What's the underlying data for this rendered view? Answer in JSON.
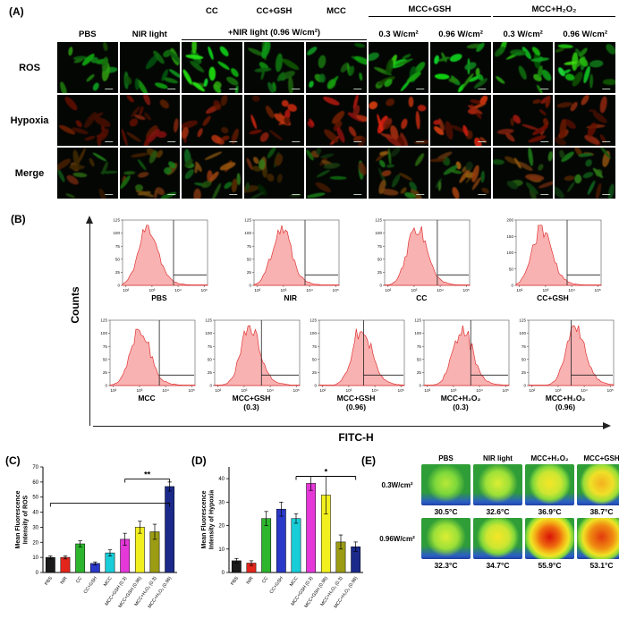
{
  "figure": {
    "panelA_label": "(A)",
    "panelB_label": "(B)",
    "panelC_label": "(C)",
    "panelD_label": "(D)",
    "panelE_label": "(E)"
  },
  "colors": {
    "ros_green": "#35d435",
    "hypoxia_red": "#e2301c",
    "merge_orange": "#d86a20",
    "hist_fill": "#f9b2b2",
    "hist_stroke": "#e03434",
    "bar_colors": [
      "#1a1a1a",
      "#e3261c",
      "#2db52d",
      "#2b39c9",
      "#19cdd8",
      "#e438d8",
      "#f2ef1f",
      "#9c9c14",
      "#1b2a8a"
    ]
  },
  "panelA": {
    "row_labels": [
      "ROS",
      "Hypoxia",
      "Merge"
    ],
    "top_headers": [
      {
        "text": "CC",
        "col": 3,
        "span": 1,
        "underline": false
      },
      {
        "text": "CC+GSH",
        "col": 4,
        "span": 1,
        "underline": false
      },
      {
        "text": "MCC",
        "col": 5,
        "span": 1,
        "underline": false
      },
      {
        "text": "MCC+GSH",
        "col": 6,
        "span": 2,
        "underline": true
      },
      {
        "text": "MCC+H₂O₂",
        "col": 8,
        "span": 2,
        "underline": true
      }
    ],
    "sub_headers": [
      {
        "text": "PBS",
        "col": 1,
        "span": 1,
        "underline": false
      },
      {
        "text": "NIR light",
        "col": 2,
        "span": 1,
        "underline": false
      },
      {
        "text": "+NIR light (0.96 W/cm²)",
        "col": 3,
        "span": 3,
        "underline": true
      },
      {
        "text": "0.3 W/cm²",
        "col": 6,
        "span": 1,
        "underline": false
      },
      {
        "text": "0.96 W/cm²",
        "col": 7,
        "span": 1,
        "underline": false
      },
      {
        "text": "0.3 W/cm²",
        "col": 8,
        "span": 1,
        "underline": false
      },
      {
        "text": "0.96 W/cm²",
        "col": 9,
        "span": 1,
        "underline": false
      }
    ],
    "ros_intensity": [
      0.5,
      0.5,
      0.85,
      0.4,
      0.6,
      0.7,
      0.9,
      0.8,
      0.9
    ],
    "hypoxia_intensity": [
      0.3,
      0.4,
      0.7,
      0.8,
      0.7,
      0.95,
      1.0,
      0.6,
      0.5
    ]
  },
  "panelB": {
    "y_axis_label": "Counts",
    "x_axis_label": "FITC-H",
    "x_ticks": [
      "10²",
      "10³",
      "10⁴",
      "10⁵"
    ],
    "top_row": [
      {
        "name": "PBS",
        "sub": "",
        "y_ticks": [
          0,
          25,
          50,
          75,
          100,
          125
        ],
        "peak": 0.3,
        "gate": 0.6,
        "seed": 11
      },
      {
        "name": "NIR",
        "sub": "",
        "y_ticks": [
          0,
          25,
          50,
          75,
          100,
          125
        ],
        "peak": 0.32,
        "gate": 0.6,
        "seed": 22
      },
      {
        "name": "CC",
        "sub": "",
        "y_ticks": [
          0,
          25,
          50,
          75,
          100,
          125
        ],
        "peak": 0.38,
        "gate": 0.62,
        "seed": 33
      },
      {
        "name": "CC+GSH",
        "sub": "",
        "y_ticks": [
          0,
          50,
          100,
          150,
          200
        ],
        "peak": 0.3,
        "gate": 0.6,
        "seed": 44
      }
    ],
    "bottom_row": [
      {
        "name": "MCC",
        "sub": "",
        "y_ticks": [
          0,
          25,
          50,
          75,
          100,
          125
        ],
        "peak": 0.35,
        "gate": 0.58,
        "seed": 55
      },
      {
        "name": "MCC+GSH",
        "sub": "(0.3)",
        "y_ticks": [
          0,
          25,
          50,
          75,
          100,
          125
        ],
        "peak": 0.42,
        "gate": 0.55,
        "seed": 66
      },
      {
        "name": "MCC+GSH",
        "sub": "(0.96)",
        "y_ticks": [
          0,
          25,
          50,
          75,
          100,
          125
        ],
        "peak": 0.5,
        "gate": 0.52,
        "seed": 77
      },
      {
        "name": "MCC+H₂O₂",
        "sub": "(0.3)",
        "y_ticks": [
          0,
          25,
          50,
          75,
          100,
          125
        ],
        "peak": 0.45,
        "gate": 0.55,
        "seed": 88
      },
      {
        "name": "MCC+H₂O₂",
        "sub": "(0.96)",
        "y_ticks": [
          0,
          25,
          50,
          75,
          100,
          125
        ],
        "peak": 0.55,
        "gate": 0.5,
        "seed": 99
      }
    ]
  },
  "chart_data": [
    {
      "id": "C",
      "type": "bar",
      "ylabel": "Mean Fluorescence\nIntensity of ROS",
      "categories": [
        "PBS",
        "NIR",
        "CC",
        "CC+GSH",
        "MCC",
        "MCC+GSH (0.3)",
        "MCC+GSH (0.96)",
        "MCC+H₂O₂ (0.3)",
        "MCC+H₂O₂ (0.96)"
      ],
      "values": [
        10,
        10,
        19,
        6,
        13,
        22,
        30,
        27,
        57
      ],
      "errors": [
        1,
        1,
        2,
        1,
        2,
        4,
        4,
        5,
        3
      ],
      "ylim": [
        0,
        70
      ],
      "yticks": [
        0,
        10,
        20,
        30,
        40,
        50,
        60,
        70
      ],
      "grid": false,
      "significance": [
        {
          "label": "",
          "from": 0,
          "to": 8,
          "y": 46
        },
        {
          "label": "**",
          "from": 5,
          "to": 8,
          "y": 62
        }
      ]
    },
    {
      "id": "D",
      "type": "bar",
      "ylabel": "Mean Fluorescence\nIntensity of Hypoxia",
      "categories": [
        "PBS",
        "NIR",
        "CC",
        "CC+GSH",
        "MCC",
        "MCC+GSH (0.3)",
        "MCC+GSH (0.96)",
        "MCC+H₂O₂ (0.3)",
        "MCC+H₂O₂ (0.96)"
      ],
      "values": [
        5,
        4,
        23,
        27,
        23,
        38,
        33,
        13,
        11
      ],
      "errors": [
        1,
        1,
        3,
        3,
        2,
        3,
        8,
        3,
        2
      ],
      "ylim": [
        0,
        45
      ],
      "yticks": [
        0,
        10,
        20,
        30,
        40
      ],
      "grid": false,
      "significance": [
        {
          "label": "*",
          "from": 4,
          "to": 8,
          "y": 41
        }
      ]
    }
  ],
  "panelE": {
    "col_headers": [
      "PBS",
      "NIR light",
      "MCC+H₂O₂",
      "MCC+GSH"
    ],
    "rows": [
      {
        "row_label": "0.3W/cm²",
        "cells": [
          {
            "temp": "30.5°C",
            "heat": "cool"
          },
          {
            "temp": "32.6°C",
            "heat": "mild"
          },
          {
            "temp": "36.9°C",
            "heat": "warm"
          },
          {
            "temp": "38.7°C",
            "heat": "warmer"
          }
        ]
      },
      {
        "row_label": "0.96W/cm²",
        "cells": [
          {
            "temp": "32.3°C",
            "heat": "mild"
          },
          {
            "temp": "34.7°C",
            "heat": "warm"
          },
          {
            "temp": "55.9°C",
            "heat": "hot"
          },
          {
            "temp": "53.1°C",
            "heat": "hot2"
          }
        ]
      }
    ]
  }
}
